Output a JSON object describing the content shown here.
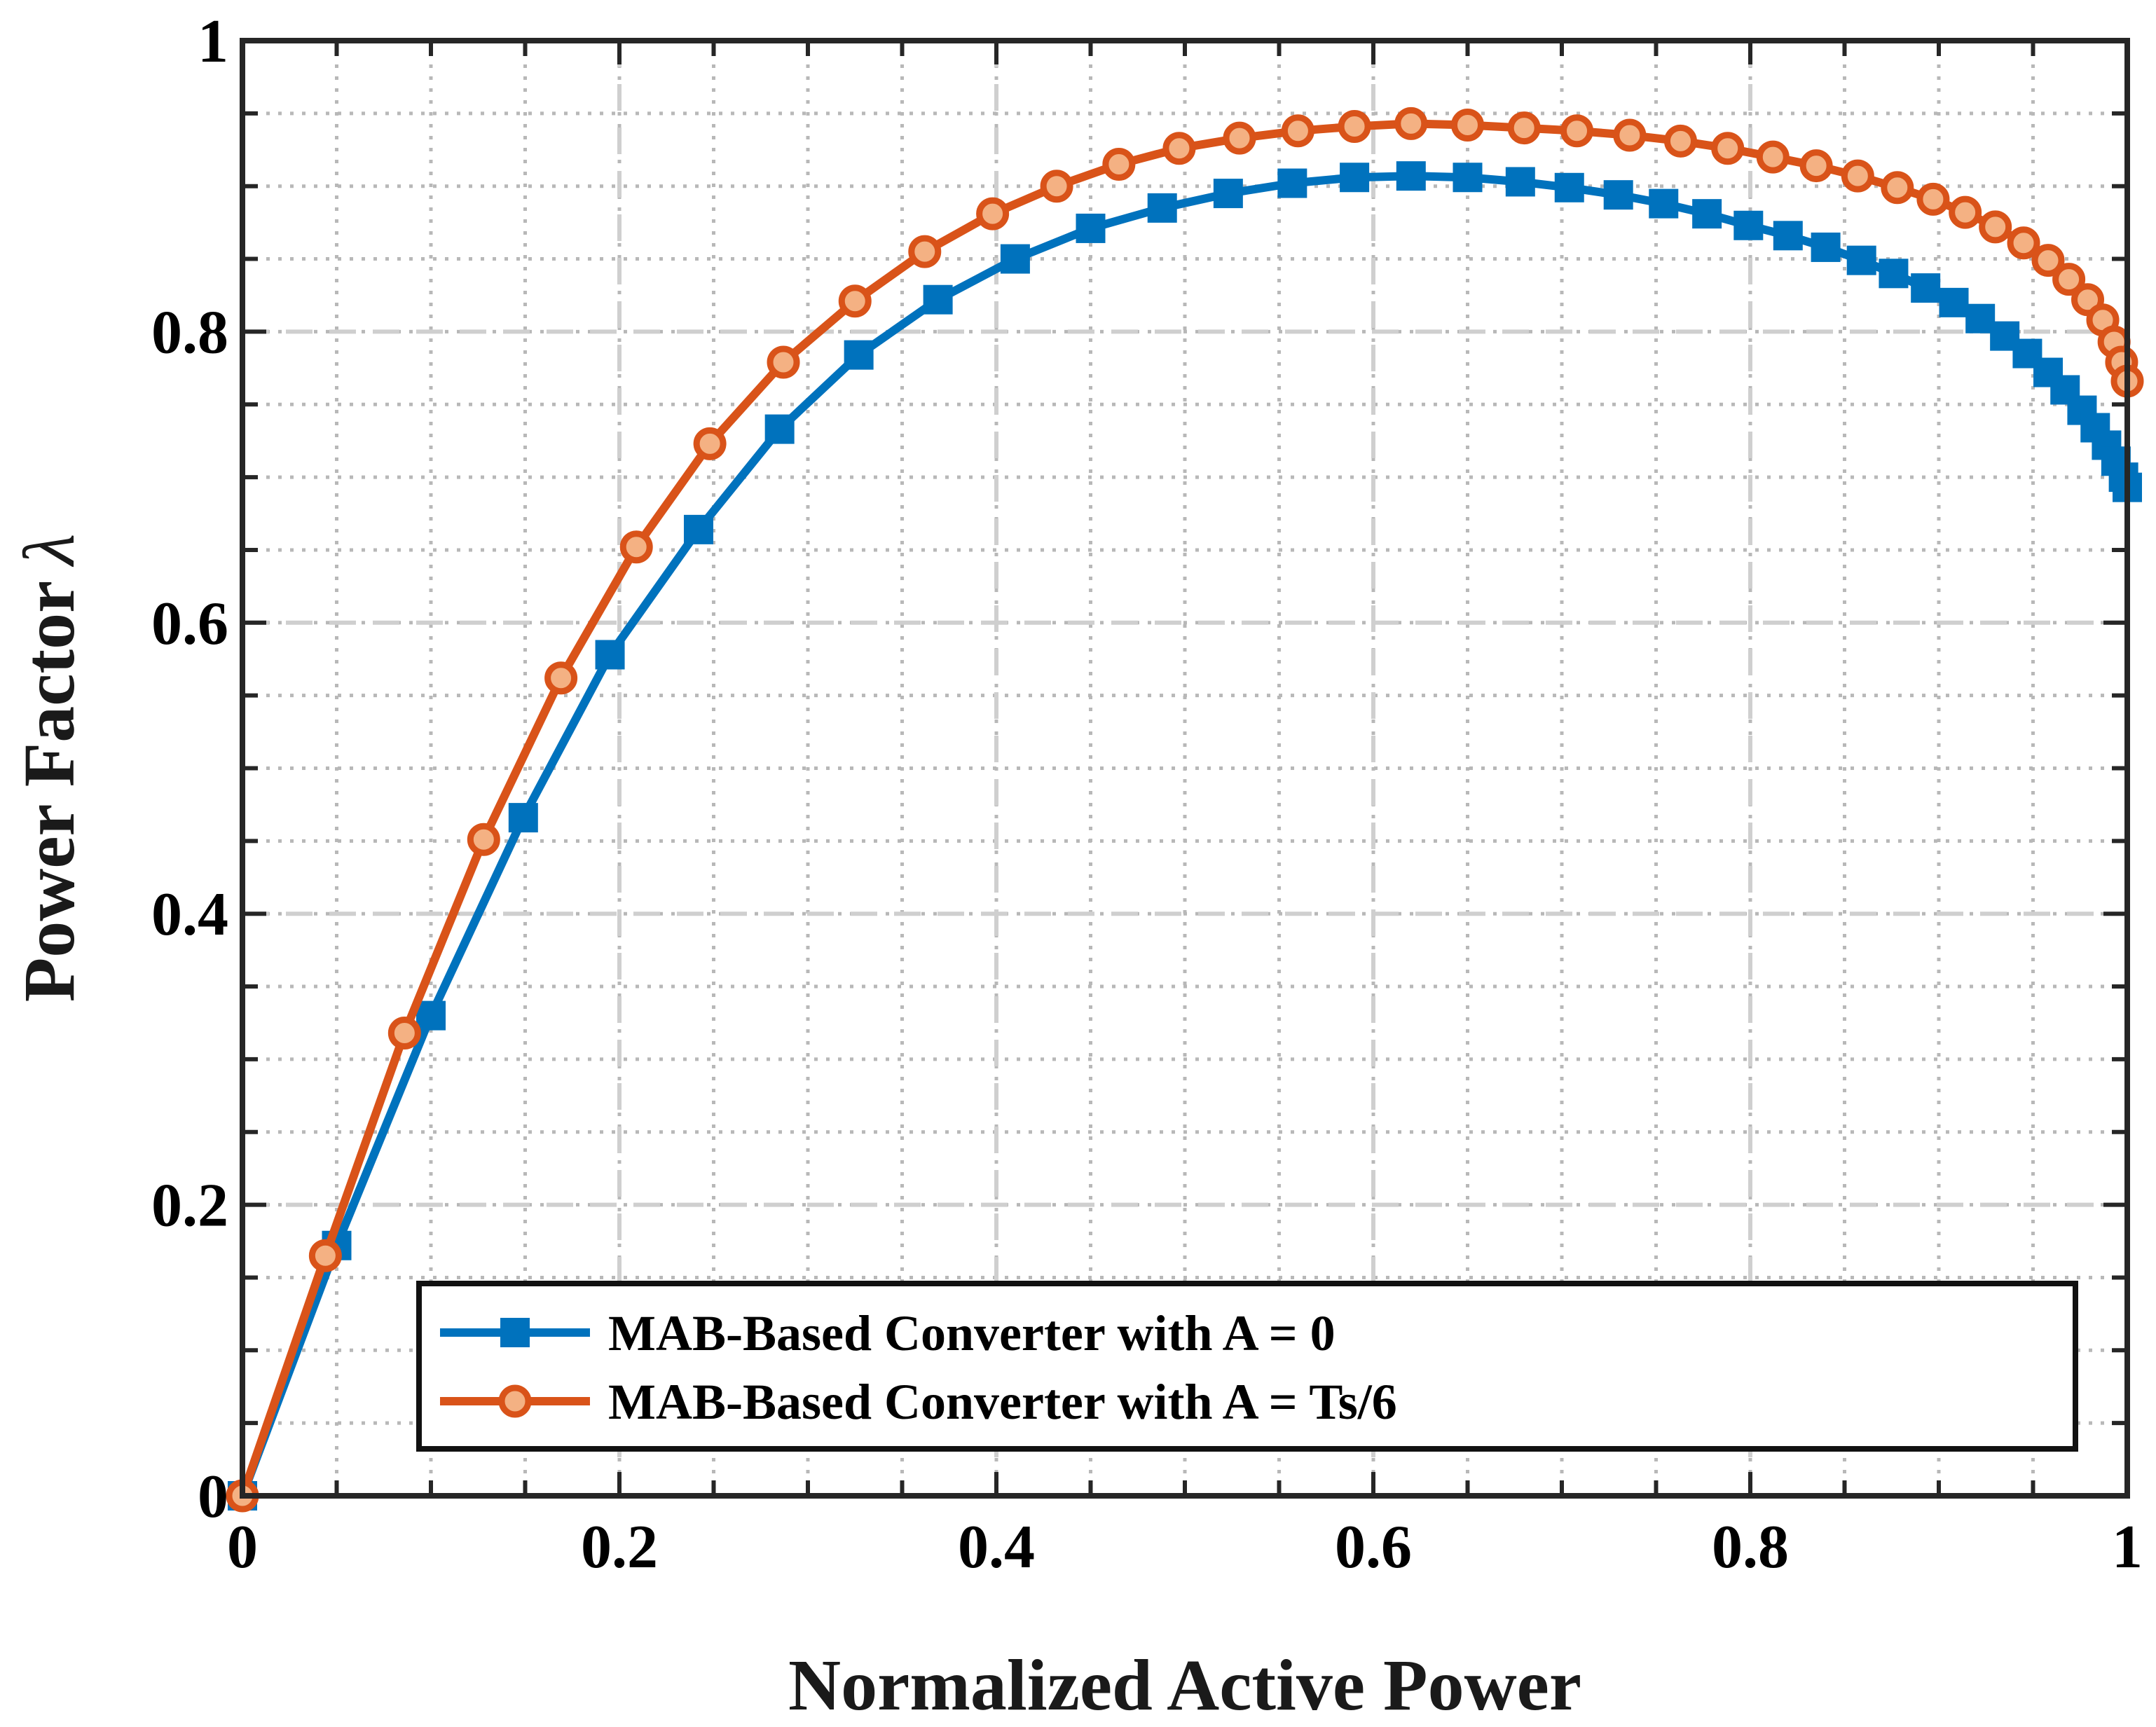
{
  "chart_data": {
    "type": "line",
    "title": "",
    "xlabel": "Normalized Active Power",
    "ylabel": "Power Factor",
    "ylabel_symbol": "λ",
    "xlim": [
      0,
      1
    ],
    "ylim": [
      0,
      1
    ],
    "grid": true,
    "x_ticks": [
      0,
      0.2,
      0.4,
      0.6,
      0.8,
      1
    ],
    "x_tick_labels": [
      "0",
      "0.2",
      "0.4",
      "0.6",
      "0.8",
      "1"
    ],
    "y_ticks": [
      0,
      0.2,
      0.4,
      0.6,
      0.8,
      1
    ],
    "y_tick_labels": [
      "0",
      "0.2",
      "0.4",
      "0.6",
      "0.8",
      "1"
    ],
    "legend_position": "bottom-center",
    "series": [
      {
        "name": "MAB-Based Converter with A = 0",
        "color": "#0072BD",
        "marker": "square",
        "points": [
          [
            0.0,
            0.0
          ],
          [
            0.05,
            0.172
          ],
          [
            0.1,
            0.33
          ],
          [
            0.149,
            0.466
          ],
          [
            0.195,
            0.578
          ],
          [
            0.242,
            0.664
          ],
          [
            0.285,
            0.733
          ],
          [
            0.327,
            0.784
          ],
          [
            0.369,
            0.822
          ],
          [
            0.41,
            0.85
          ],
          [
            0.45,
            0.871
          ],
          [
            0.488,
            0.885
          ],
          [
            0.523,
            0.895
          ],
          [
            0.557,
            0.902
          ],
          [
            0.59,
            0.906
          ],
          [
            0.62,
            0.907
          ],
          [
            0.65,
            0.906
          ],
          [
            0.678,
            0.903
          ],
          [
            0.704,
            0.899
          ],
          [
            0.73,
            0.894
          ],
          [
            0.754,
            0.888
          ],
          [
            0.777,
            0.881
          ],
          [
            0.799,
            0.873
          ],
          [
            0.82,
            0.866
          ],
          [
            0.84,
            0.858
          ],
          [
            0.859,
            0.849
          ],
          [
            0.876,
            0.84
          ],
          [
            0.893,
            0.83
          ],
          [
            0.908,
            0.82
          ],
          [
            0.922,
            0.809
          ],
          [
            0.935,
            0.797
          ],
          [
            0.947,
            0.785
          ],
          [
            0.958,
            0.772
          ],
          [
            0.967,
            0.76
          ],
          [
            0.976,
            0.746
          ],
          [
            0.983,
            0.734
          ],
          [
            0.989,
            0.722
          ],
          [
            0.994,
            0.711
          ],
          [
            0.998,
            0.7
          ],
          [
            1.0,
            0.693
          ]
        ]
      },
      {
        "name": "MAB-Based Converter with A = Ts/6",
        "color": "#D95319",
        "marker": "circle",
        "points": [
          [
            0.0,
            0.0
          ],
          [
            0.044,
            0.165
          ],
          [
            0.086,
            0.318
          ],
          [
            0.128,
            0.451
          ],
          [
            0.169,
            0.562
          ],
          [
            0.209,
            0.652
          ],
          [
            0.248,
            0.723
          ],
          [
            0.287,
            0.779
          ],
          [
            0.325,
            0.821
          ],
          [
            0.362,
            0.855
          ],
          [
            0.398,
            0.881
          ],
          [
            0.432,
            0.9
          ],
          [
            0.465,
            0.915
          ],
          [
            0.497,
            0.926
          ],
          [
            0.529,
            0.933
          ],
          [
            0.56,
            0.938
          ],
          [
            0.59,
            0.941
          ],
          [
            0.62,
            0.943
          ],
          [
            0.65,
            0.942
          ],
          [
            0.68,
            0.94
          ],
          [
            0.708,
            0.938
          ],
          [
            0.736,
            0.935
          ],
          [
            0.763,
            0.931
          ],
          [
            0.788,
            0.926
          ],
          [
            0.812,
            0.92
          ],
          [
            0.835,
            0.914
          ],
          [
            0.857,
            0.907
          ],
          [
            0.878,
            0.899
          ],
          [
            0.897,
            0.891
          ],
          [
            0.914,
            0.882
          ],
          [
            0.93,
            0.872
          ],
          [
            0.945,
            0.861
          ],
          [
            0.958,
            0.849
          ],
          [
            0.969,
            0.836
          ],
          [
            0.979,
            0.822
          ],
          [
            0.987,
            0.808
          ],
          [
            0.993,
            0.793
          ],
          [
            0.997,
            0.779
          ],
          [
            1.0,
            0.766
          ]
        ]
      }
    ]
  }
}
